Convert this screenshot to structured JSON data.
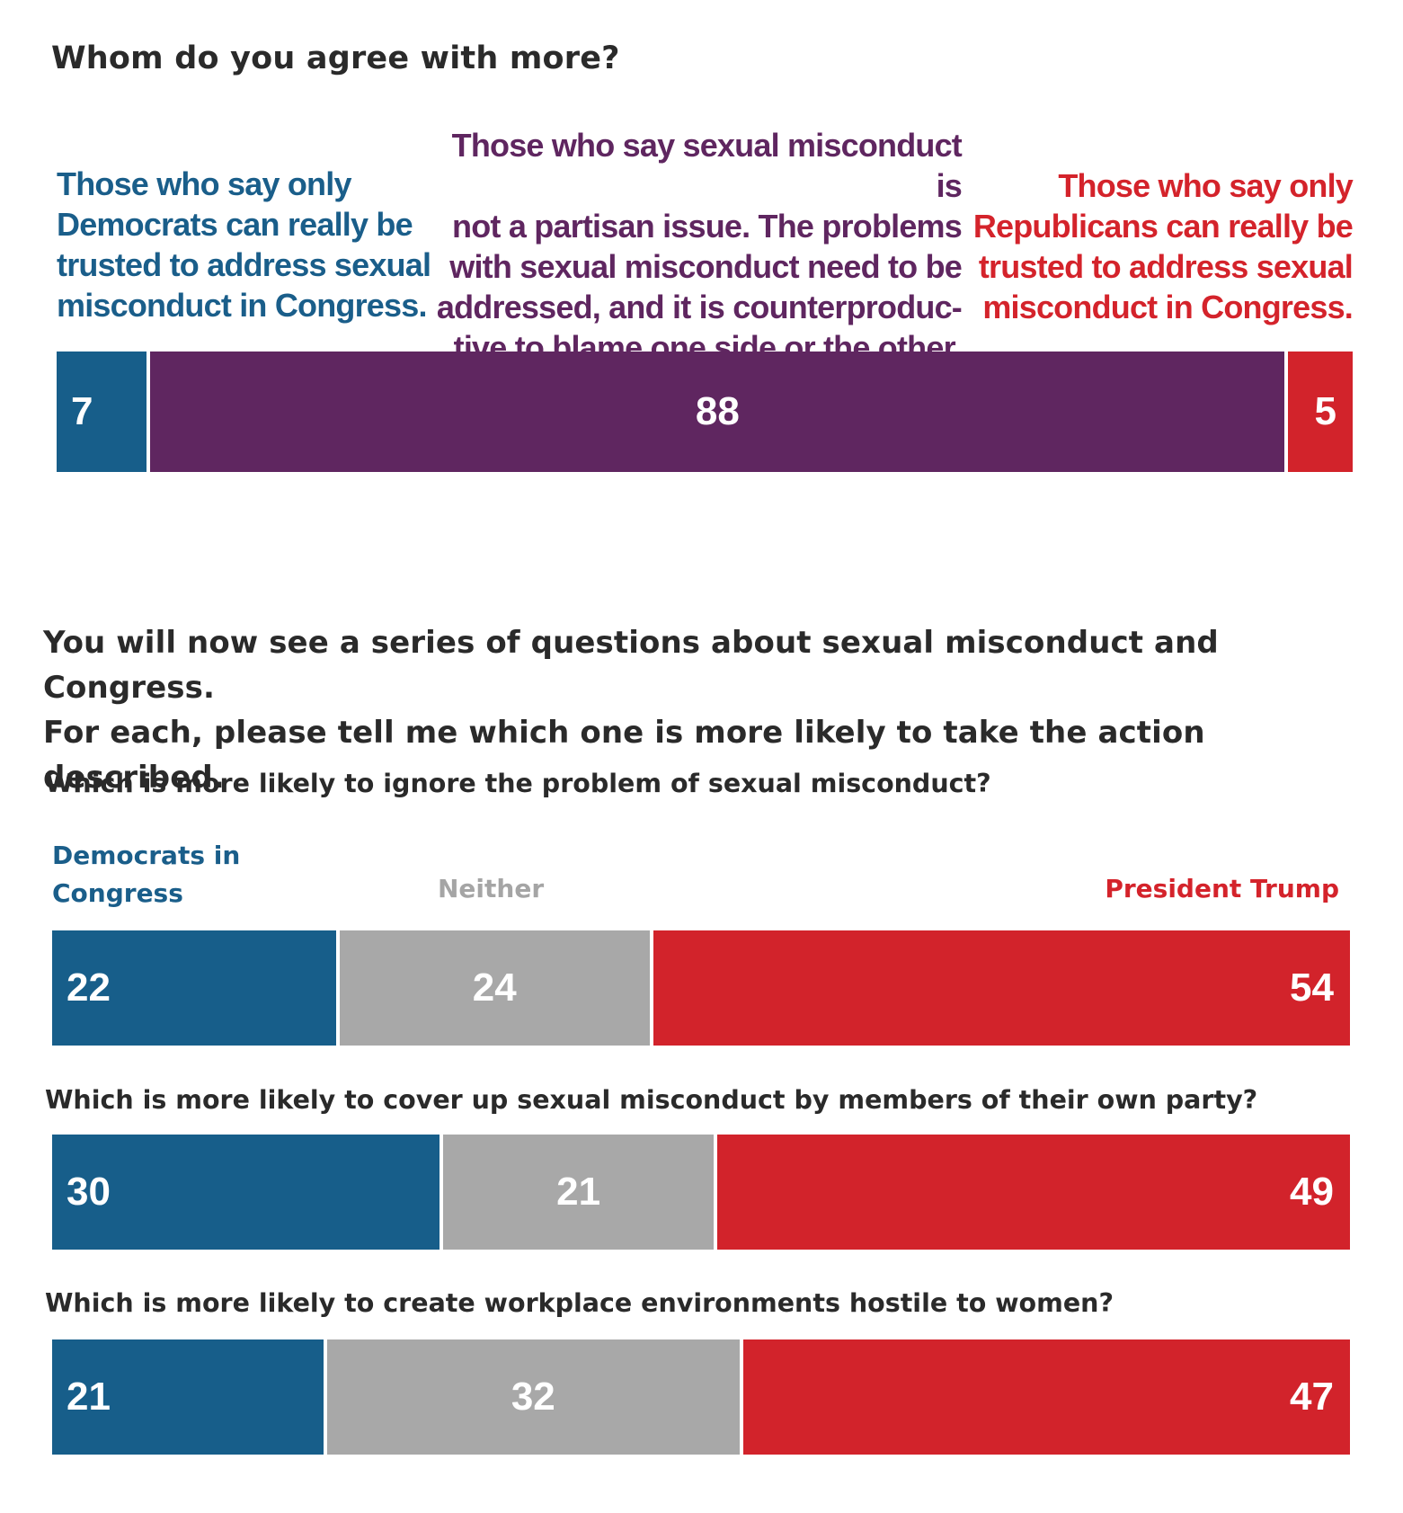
{
  "top_chart": {
    "title": "Whom do you agree with more?",
    "labels": [
      "Those who say only Democrats can really be trusted to address sexual misconduct in Congress.",
      "Those who say sexual misconduct is not a partisan issue. The problems with sexual misconduct need to be addressed, and it is counterproduc-tive to blame one side or the other.",
      "Those who say only Republicans can really be trusted to address sexual misconduct in Congress."
    ],
    "label_lines": {
      "dem": [
        "Those who say only",
        "Democrats can really be",
        "trusted to address sexual",
        "misconduct in Congress."
      ],
      "mid": [
        "Those who say sexual misconduct is",
        "not a partisan issue. The problems",
        "with sexual misconduct need to be",
        "addressed, and it is counterproduc-",
        "tive to blame one side or the other."
      ],
      "rep": [
        "Those who say only",
        "Republicans can really be",
        "trusted to address sexual",
        "misconduct in Congress."
      ]
    }
  },
  "intro": {
    "line1": "You will now see a series of questions about sexual misconduct and Congress.",
    "line2": "For each, please tell me which one is more likely to take the action described."
  },
  "legend": {
    "dem_line1": "Democrats in",
    "dem_line2": "Congress",
    "neither": "Neither",
    "trump": "President Trump"
  },
  "colors": {
    "democrats": "#175e8a",
    "neither": "#a8a8a8",
    "trump": "#d2232b",
    "nonpartisan": "#5f2660",
    "republicans": "#d2232b"
  },
  "chart_data": [
    {
      "type": "bar",
      "stacked": true,
      "orientation": "horizontal",
      "title": "Whom do you agree with more?",
      "categories": [
        "Whom do you agree with more?"
      ],
      "series": [
        {
          "name": "Those who say only Democrats can really be trusted to address sexual misconduct in Congress.",
          "values": [
            7
          ]
        },
        {
          "name": "Those who say sexual misconduct is not a partisan issue. The problems with sexual misconduct need to be addressed, and it is counterproduc-tive to blame one side or the other.",
          "values": [
            88
          ]
        },
        {
          "name": "Those who say only Republicans can really be trusted to address sexual misconduct in Congress.",
          "values": [
            5
          ]
        }
      ]
    },
    {
      "type": "bar",
      "stacked": true,
      "orientation": "horizontal",
      "title": "",
      "categories": [
        "Which is more likely to ignore the problem of sexual misconduct?",
        "Which is more likely to cover up sexual misconduct by members of their own party?",
        "Which is more likely to create workplace environments hostile to women?"
      ],
      "series": [
        {
          "name": "Democrats in Congress",
          "values": [
            22,
            30,
            21
          ]
        },
        {
          "name": "Neither",
          "values": [
            24,
            21,
            32
          ]
        },
        {
          "name": "President Trump",
          "values": [
            54,
            49,
            47
          ]
        }
      ]
    }
  ]
}
